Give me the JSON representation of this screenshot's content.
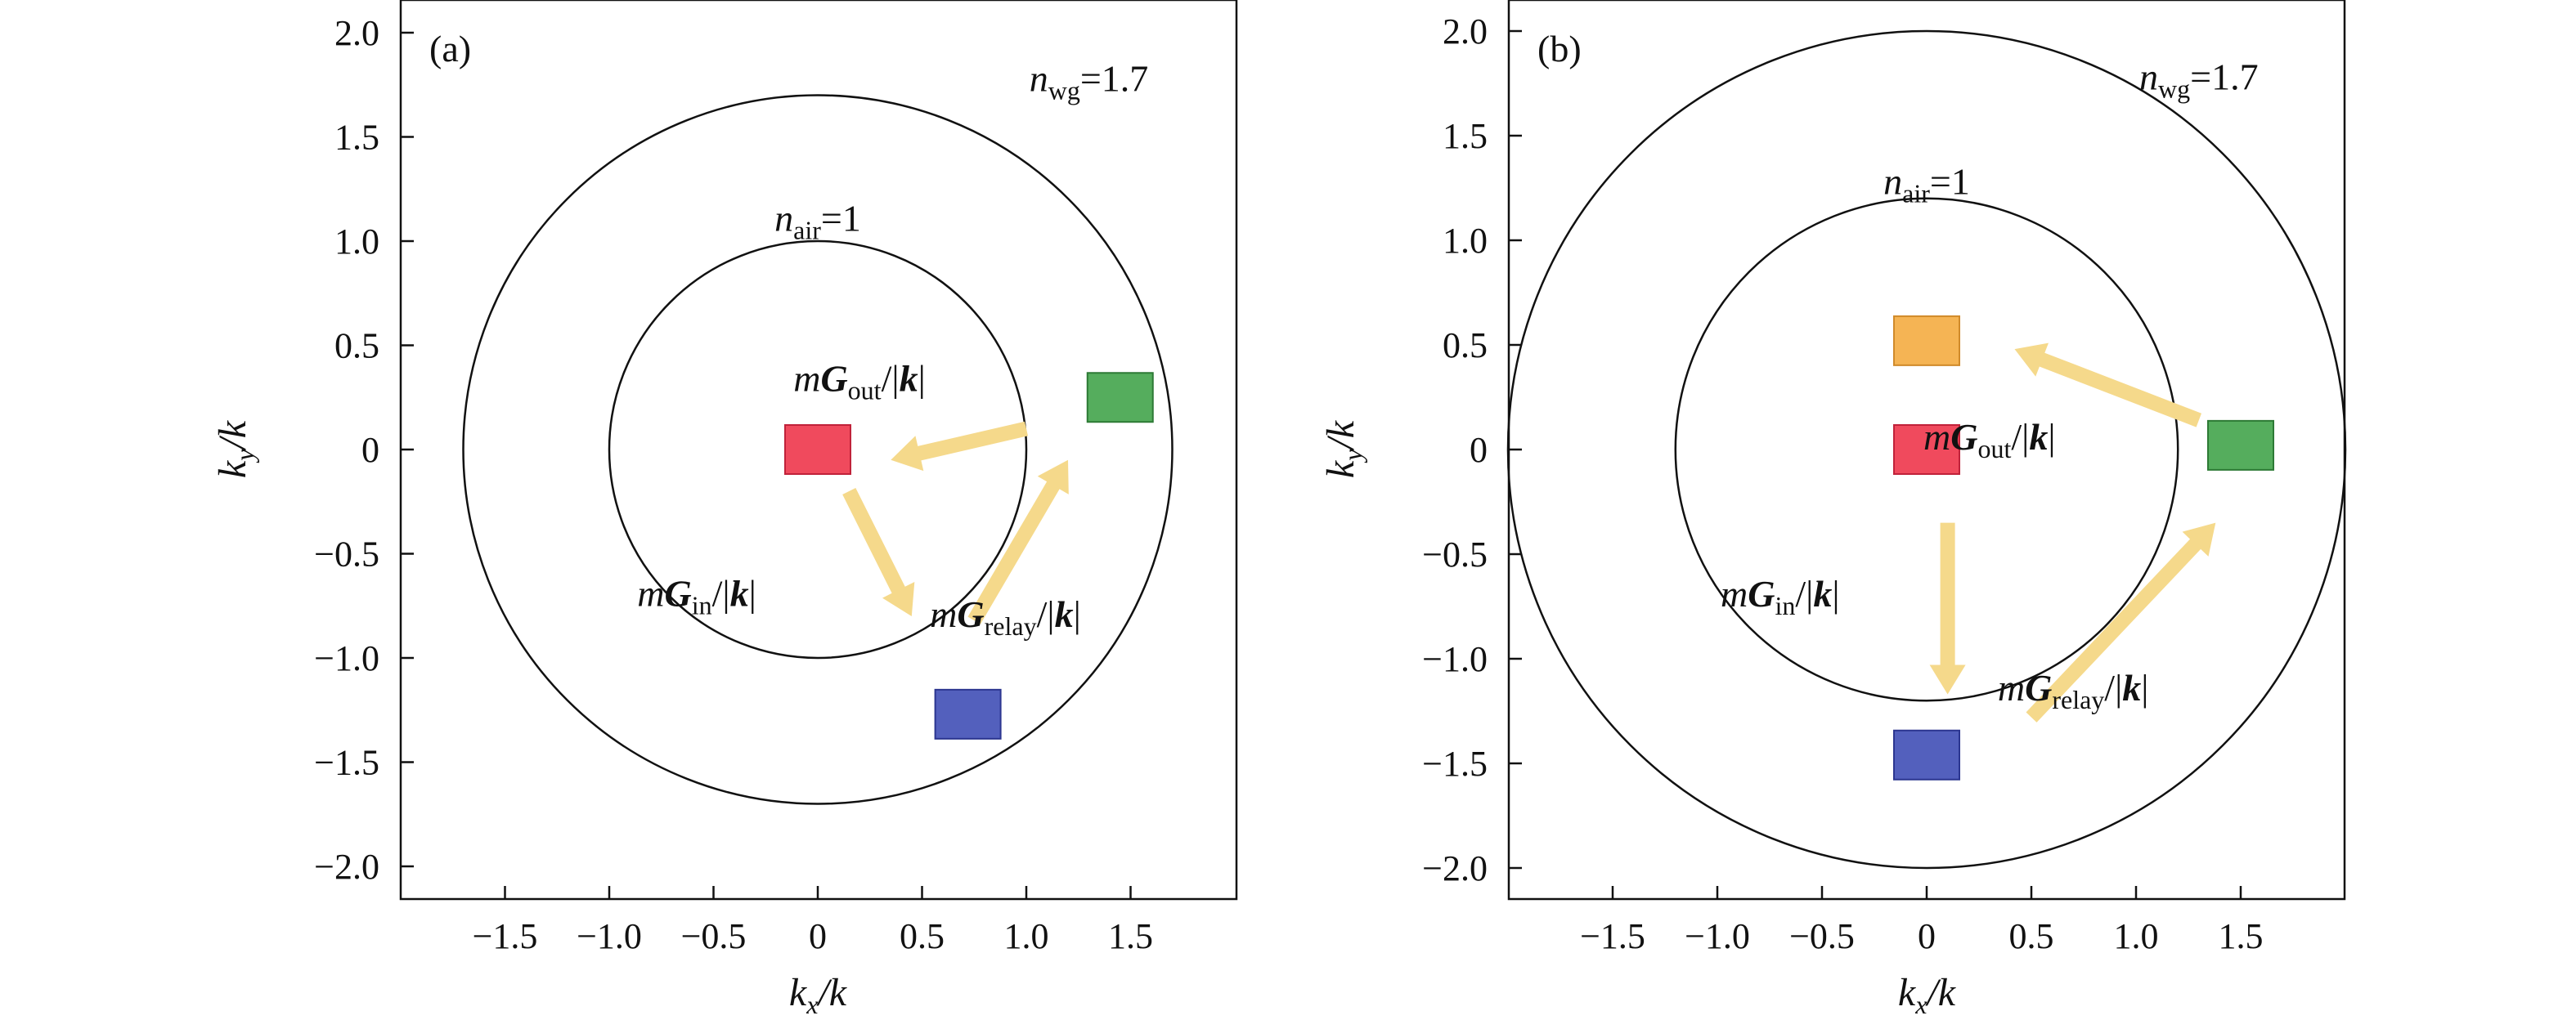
{
  "chart_data": [
    {
      "type": "scatter",
      "panel_label": "(a)",
      "xlabel": {
        "main": "k",
        "sub": "x",
        "denom": "/k"
      },
      "ylabel": {
        "main": "k",
        "sub": "y",
        "denom": "/k"
      },
      "xlim": [
        -2.0,
        2.0
      ],
      "ylim": [
        -2.2,
        2.2
      ],
      "x_ticks": [
        -1.5,
        -1.0,
        -0.5,
        0,
        0.5,
        1.0,
        1.5
      ],
      "x_tick_labels": [
        "−1.5",
        "−1.0",
        "−0.5",
        "0",
        "0.5",
        "1.0",
        "1.5"
      ],
      "y_ticks": [
        2.0,
        1.5,
        1.0,
        0.5,
        0,
        -0.5,
        -1.0,
        -1.5,
        -2.0
      ],
      "y_tick_labels": [
        "2.0",
        "1.5",
        "1.0",
        "0.5",
        "0",
        "−0.5",
        "−1.0",
        "−1.5",
        "−2.0"
      ],
      "circles": [
        {
          "radius": 1.0,
          "name": "air",
          "label": {
            "n": "n",
            "sub": "air",
            "value": "=1"
          },
          "label_at": [
            0.0,
            1.05
          ]
        },
        {
          "radius": 1.7,
          "name": "wg",
          "label": {
            "n": "n",
            "sub": "wg",
            "value": "=1.7"
          },
          "label_at": [
            1.3,
            1.72
          ]
        }
      ],
      "markers": [
        {
          "name": "red",
          "x": 0.0,
          "y": 0.0,
          "color": "#f04a5d",
          "stroke": "#c0223a"
        },
        {
          "name": "green",
          "x": 1.45,
          "y": 0.25,
          "color": "#55ad5d",
          "stroke": "#2d7a35"
        },
        {
          "name": "blue",
          "x": 0.72,
          "y": -1.27,
          "color": "#5360bd",
          "stroke": "#2c3690"
        }
      ],
      "arrows": [
        {
          "name": "g-in",
          "from": [
            0.15,
            -0.2
          ],
          "to": [
            0.45,
            -0.8
          ],
          "label": {
            "m": "m",
            "G": "G",
            "sub": "in",
            "tail": "/|",
            "k": "k",
            "end": "|"
          },
          "label_at": [
            -0.58,
            -0.75
          ]
        },
        {
          "name": "g-relay",
          "from": [
            0.75,
            -0.82
          ],
          "to": [
            1.2,
            -0.05
          ],
          "label": {
            "m": "m",
            "G": "G",
            "sub": "relay",
            "tail": "/|",
            "k": "k",
            "end": "|"
          },
          "label_at": [
            0.9,
            -0.85
          ]
        },
        {
          "name": "g-out",
          "from": [
            1.0,
            0.1
          ],
          "to": [
            0.35,
            -0.05
          ],
          "label": {
            "m": "m",
            "G": "G",
            "sub": "out",
            "tail": "/|",
            "k": "k",
            "end": "|"
          },
          "label_at": [
            0.2,
            0.28
          ]
        }
      ],
      "arrow_color": "#f5d98b"
    },
    {
      "type": "scatter",
      "panel_label": "(b)",
      "xlabel": {
        "main": "k",
        "sub": "x",
        "denom": "/k"
      },
      "ylabel": {
        "main": "k",
        "sub": "y",
        "denom": "/k"
      },
      "xlim": [
        -2.0,
        2.0
      ],
      "ylim": [
        -2.1,
        2.1
      ],
      "x_ticks": [
        -1.5,
        -1.0,
        -0.5,
        0,
        0.5,
        1.0,
        1.5
      ],
      "x_tick_labels": [
        "−1.5",
        "−1.0",
        "−0.5",
        "0",
        "0.5",
        "1.0",
        "1.5"
      ],
      "y_ticks": [
        2.0,
        1.5,
        1.0,
        0.5,
        0,
        -0.5,
        -1.0,
        -1.5,
        -2.0
      ],
      "y_tick_labels": [
        "2.0",
        "1.5",
        "1.0",
        "0.5",
        "0",
        "−0.5",
        "−1.0",
        "−1.5",
        "−2.0"
      ],
      "circles": [
        {
          "radius": 1.2,
          "name": "air",
          "label": {
            "n": "n",
            "sub": "air",
            "value": "=1"
          },
          "label_at": [
            0.0,
            1.22
          ]
        },
        {
          "radius": 2.0,
          "name": "wg",
          "label": {
            "n": "n",
            "sub": "wg",
            "value": "=1.7"
          },
          "label_at": [
            1.3,
            1.72
          ]
        }
      ],
      "markers": [
        {
          "name": "orange",
          "x": 0.0,
          "y": 0.52,
          "color": "#f5b454",
          "stroke": "#d08a2a"
        },
        {
          "name": "red",
          "x": 0.0,
          "y": 0.0,
          "color": "#f04a5d",
          "stroke": "#c0223a"
        },
        {
          "name": "green",
          "x": 1.5,
          "y": 0.02,
          "color": "#55ad5d",
          "stroke": "#2d7a35"
        },
        {
          "name": "blue",
          "x": 0.0,
          "y": -1.46,
          "color": "#5360bd",
          "stroke": "#2c3690"
        }
      ],
      "arrows": [
        {
          "name": "g-in",
          "from": [
            0.1,
            -0.35
          ],
          "to": [
            0.1,
            -1.17
          ],
          "label": {
            "m": "m",
            "G": "G",
            "sub": "in",
            "tail": "/|",
            "k": "k",
            "end": "|"
          },
          "label_at": [
            -0.7,
            -0.75
          ]
        },
        {
          "name": "g-relay",
          "from": [
            0.5,
            -1.28
          ],
          "to": [
            1.38,
            -0.35
          ],
          "label": {
            "m": "m",
            "G": "G",
            "sub": "relay",
            "tail": "/|",
            "k": "k",
            "end": "|"
          },
          "label_at": [
            0.7,
            -1.2
          ]
        },
        {
          "name": "g-out",
          "from": [
            1.3,
            0.14
          ],
          "to": [
            0.42,
            0.48
          ],
          "label": {
            "m": "m",
            "G": "G",
            "sub": "out",
            "tail": "/|",
            "k": "k",
            "end": "|"
          },
          "label_at": [
            0.3,
            0.0
          ]
        }
      ],
      "arrow_color": "#f5d98b"
    }
  ]
}
